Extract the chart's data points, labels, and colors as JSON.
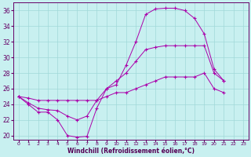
{
  "xlabel": "Windchill (Refroidissement éolien,°C)",
  "xlim": [
    -0.5,
    23.5
  ],
  "ylim": [
    19.5,
    37.0
  ],
  "yticks": [
    20,
    22,
    24,
    26,
    28,
    30,
    32,
    34,
    36
  ],
  "xticks": [
    0,
    1,
    2,
    3,
    4,
    5,
    6,
    7,
    8,
    9,
    10,
    11,
    12,
    13,
    14,
    15,
    16,
    17,
    18,
    19,
    20,
    21,
    22,
    23
  ],
  "background_color": "#c8f0f0",
  "grid_color": "#a0d8d8",
  "line_color": "#aa00aa",
  "line1_y": [
    25.0,
    24.0,
    23.0,
    23.0,
    22.0,
    20.0,
    19.8,
    19.9,
    23.5,
    26.0,
    26.5,
    29.0,
    32.0,
    35.5,
    36.2,
    36.3,
    36.3,
    36.0,
    35.0,
    33.0,
    28.5,
    27.0,
    null,
    null
  ],
  "line2_y": [
    25.0,
    24.2,
    23.5,
    23.3,
    23.2,
    22.5,
    22.0,
    22.5,
    24.5,
    26.0,
    27.0,
    28.0,
    29.5,
    31.0,
    31.3,
    31.5,
    31.5,
    31.5,
    31.5,
    31.5,
    28.0,
    27.0,
    null,
    null
  ],
  "line3_y": [
    25.0,
    24.8,
    24.5,
    24.5,
    24.5,
    24.5,
    24.5,
    24.5,
    24.5,
    25.0,
    25.5,
    25.5,
    26.0,
    26.5,
    27.0,
    27.5,
    27.5,
    27.5,
    27.5,
    28.0,
    26.0,
    25.5,
    null,
    null
  ]
}
